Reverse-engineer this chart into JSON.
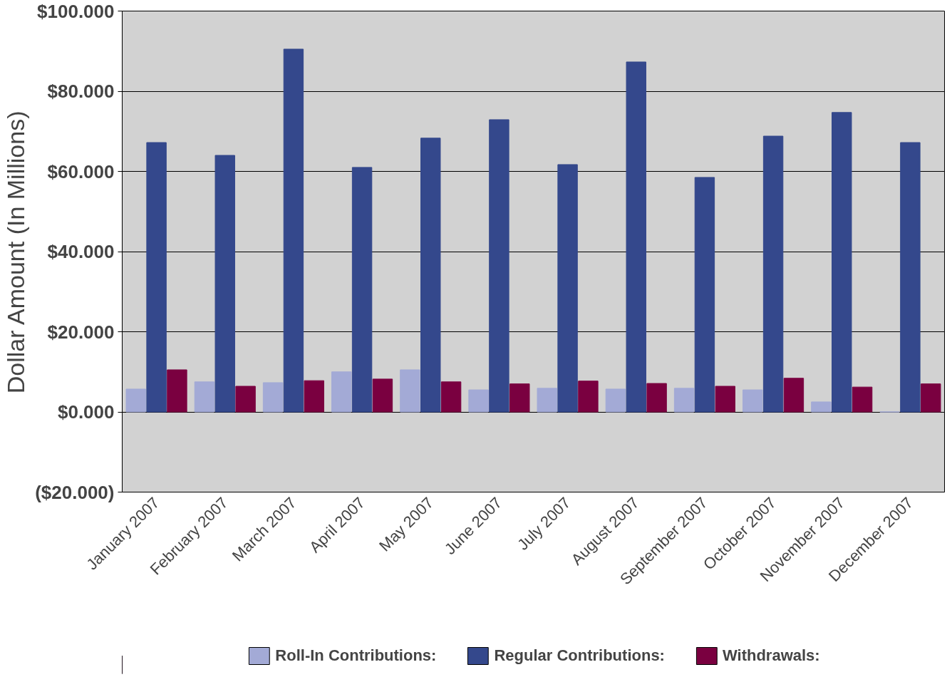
{
  "chart_data": {
    "type": "bar",
    "ylabel": "Dollar Amount (In Millions)",
    "categories": [
      "January 2007",
      "February 2007",
      "March 2007",
      "April 2007",
      "May 2007",
      "June 2007",
      "July 2007",
      "August 2007",
      "September 2007",
      "October 2007",
      "November 2007",
      "December 2007"
    ],
    "series": [
      {
        "name": "Roll-In Contributions:",
        "color": "#a3aad6",
        "values": [
          5.7,
          7.5,
          7.3,
          10,
          10.5,
          5.5,
          5.9,
          5.7,
          5.9,
          5.5,
          2.5,
          0
        ]
      },
      {
        "name": "Regular Contributions:",
        "color": "#34488c",
        "values": [
          67.2,
          64,
          90.5,
          61,
          68.3,
          72.9,
          61.7,
          87.3,
          58.5,
          68.8,
          74.7,
          67.2
        ]
      },
      {
        "name": "Withdrawals:",
        "color": "#7a0040",
        "values": [
          10.5,
          6.4,
          7.8,
          8.2,
          7.5,
          7,
          7.7,
          7.1,
          6.4,
          8.4,
          6.2,
          7
        ]
      }
    ],
    "ylim": [
      -20,
      100
    ],
    "yticks": [
      {
        "value": -20,
        "label": "($20.000)"
      },
      {
        "value": 0,
        "label": "$0.000"
      },
      {
        "value": 20,
        "label": "$20.000"
      },
      {
        "value": 40,
        "label": "$40.000"
      },
      {
        "value": 60,
        "label": "$60.000"
      },
      {
        "value": 80,
        "label": "$80.000"
      },
      {
        "value": 100,
        "label": "$100.000"
      }
    ],
    "grid": "y",
    "legend": "bottom"
  }
}
